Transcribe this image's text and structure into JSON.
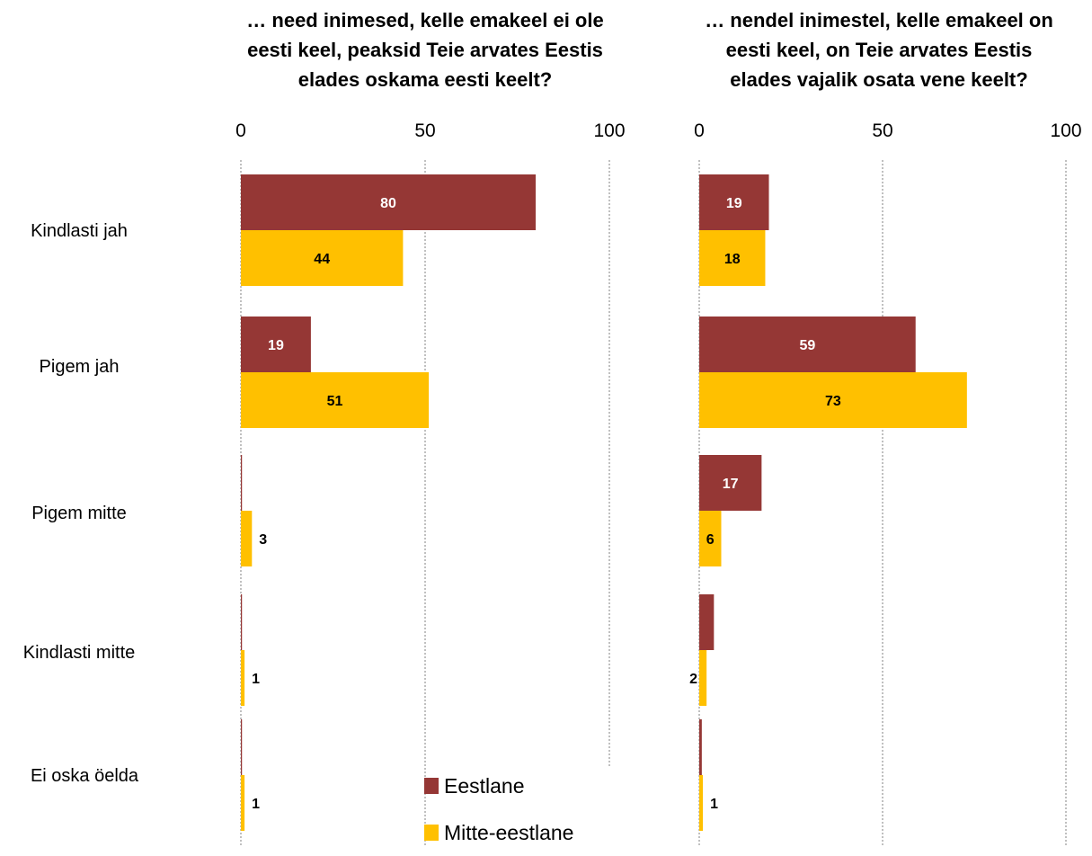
{
  "chart_data": [
    {
      "type": "bar",
      "title": "… need inimesed, kelle emakeel ei ole eesti keel, peaksid Teie arvates Eestis elades oskama eesti keelt?",
      "title_lines": [
        "… need inimesed, kelle emakeel ei ole",
        "eesti keel, peaksid Teie arvates Eestis",
        "elades oskama eesti keelt?"
      ],
      "categories": [
        "Kindlasti jah",
        "Pigem jah",
        "Pigem mitte",
        "Kindlasti mitte",
        "Ei oska öelda"
      ],
      "series": [
        {
          "name": "Eestlane",
          "values": [
            80,
            19,
            0.3,
            0.3,
            0.3
          ],
          "labels": [
            "80",
            "19",
            "",
            "",
            ""
          ]
        },
        {
          "name": "Mitte-eestlane",
          "values": [
            44,
            51,
            3,
            1,
            1
          ],
          "labels": [
            "44",
            "51",
            "3",
            "1",
            "1"
          ]
        }
      ],
      "xlim": [
        0,
        100
      ],
      "xticks": [
        "0",
        "50",
        "100"
      ],
      "orientation": "horizontal",
      "grid": "vertical dotted"
    },
    {
      "type": "bar",
      "title": "… nendel inimestel, kelle emakeel on eesti keel, on Teie arvates Eestis elades vajalik osata vene keelt?",
      "title_lines": [
        "… nendel inimestel, kelle emakeel on",
        "eesti keel, on Teie arvates Eestis",
        "elades vajalik osata vene keelt?"
      ],
      "categories": [
        "Kindlasti jah",
        "Pigem jah",
        "Pigem mitte",
        "Kindlasti mitte",
        "Ei oska öelda"
      ],
      "series": [
        {
          "name": "Eestlane",
          "values": [
            19,
            59,
            17,
            4,
            0.7
          ],
          "labels": [
            "19",
            "59",
            "17",
            "",
            ""
          ]
        },
        {
          "name": "Mitte-eestlane",
          "values": [
            18,
            73,
            6,
            2,
            1
          ],
          "labels": [
            "18",
            "73",
            "6",
            "2",
            "1"
          ]
        }
      ],
      "xlim": [
        0,
        100
      ],
      "xticks": [
        "0",
        "50",
        "100"
      ],
      "orientation": "horizontal",
      "grid": "vertical dotted"
    }
  ],
  "legend": {
    "placement": "bottom-center",
    "items": [
      {
        "label": "Eestlane",
        "color": "#953735"
      },
      {
        "label": "Mitte-eestlane",
        "color": "#FFC000"
      }
    ]
  },
  "colors": {
    "eestlane": "#953735",
    "mitte_eestlane": "#FFC000",
    "grid": "#808080"
  }
}
